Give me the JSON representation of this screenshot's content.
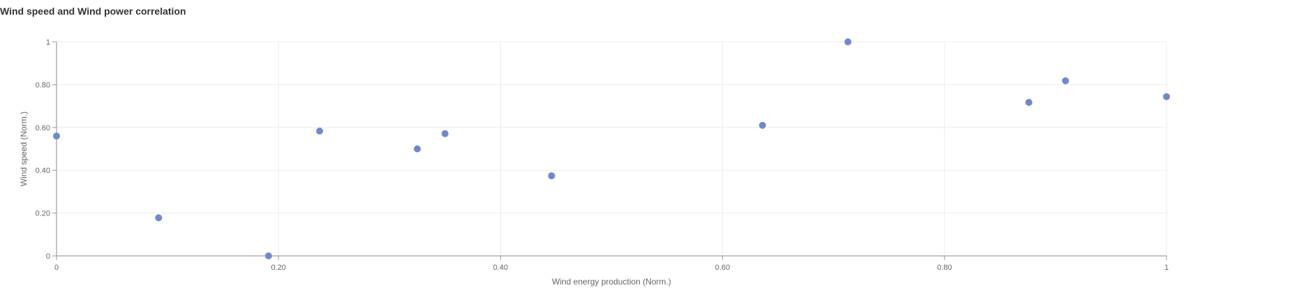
{
  "chart_data": {
    "type": "scatter",
    "title": "Wind speed and Wind power correlation",
    "xlabel": "Wind energy production (Norm.)",
    "ylabel": "Wind speed (Norm.)",
    "xlim": [
      0,
      1
    ],
    "ylim": [
      0,
      1
    ],
    "xticks": [
      0,
      0.2,
      0.4,
      0.6,
      0.8,
      1
    ],
    "xtick_labels": [
      "0",
      "0.20",
      "0.40",
      "0.60",
      "0.80",
      "1"
    ],
    "yticks": [
      0,
      0.2,
      0.4,
      0.6,
      0.8,
      1
    ],
    "ytick_labels": [
      "0",
      "0.20",
      "0.40",
      "0.60",
      "0.80",
      "1"
    ],
    "grid": true,
    "point_color": "#7089cc",
    "points": [
      {
        "x": 0.0,
        "y": 0.56
      },
      {
        "x": 0.092,
        "y": 0.178
      },
      {
        "x": 0.191,
        "y": 0.0
      },
      {
        "x": 0.237,
        "y": 0.583
      },
      {
        "x": 0.325,
        "y": 0.5
      },
      {
        "x": 0.35,
        "y": 0.571
      },
      {
        "x": 0.446,
        "y": 0.374
      },
      {
        "x": 0.636,
        "y": 0.61
      },
      {
        "x": 0.713,
        "y": 1.0
      },
      {
        "x": 0.876,
        "y": 0.717
      },
      {
        "x": 0.909,
        "y": 0.818
      },
      {
        "x": 1.0,
        "y": 0.744
      }
    ]
  }
}
